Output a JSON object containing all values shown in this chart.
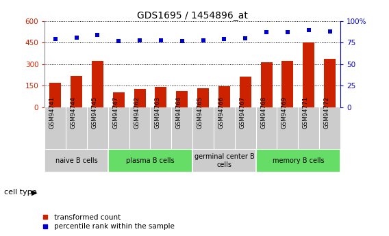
{
  "title": "GDS1695 / 1454896_at",
  "samples": [
    "GSM94741",
    "GSM94744",
    "GSM94745",
    "GSM94747",
    "GSM94762",
    "GSM94763",
    "GSM94764",
    "GSM94765",
    "GSM94766",
    "GSM94767",
    "GSM94768",
    "GSM94769",
    "GSM94771",
    "GSM94772"
  ],
  "transformed_count": [
    170,
    220,
    325,
    105,
    130,
    140,
    115,
    135,
    145,
    215,
    315,
    325,
    450,
    340
  ],
  "percentile_rank": [
    79,
    81,
    84,
    77,
    78,
    78,
    77,
    78,
    79,
    80,
    87,
    87,
    90,
    88
  ],
  "left_ylim": [
    0,
    600
  ],
  "left_yticks": [
    0,
    150,
    300,
    450,
    600
  ],
  "right_ylim": [
    0,
    100
  ],
  "right_yticks": [
    0,
    25,
    50,
    75,
    100
  ],
  "bar_color": "#cc2200",
  "dot_color": "#0000cc",
  "cell_types": [
    {
      "label": "naive B cells",
      "start": 0,
      "end": 3,
      "color": "#cccccc"
    },
    {
      "label": "plasma B cells",
      "start": 3,
      "end": 7,
      "color": "#66dd66"
    },
    {
      "label": "germinal center B\ncells",
      "start": 7,
      "end": 10,
      "color": "#cccccc"
    },
    {
      "label": "memory B cells",
      "start": 10,
      "end": 14,
      "color": "#66dd66"
    }
  ],
  "legend_bar_label": "transformed count",
  "legend_dot_label": "percentile rank within the sample",
  "cell_type_label": "cell type",
  "background_color": "#ffffff",
  "xticklabel_bg": "#cccccc",
  "grid_color": "#444444",
  "border_color": "#888888"
}
